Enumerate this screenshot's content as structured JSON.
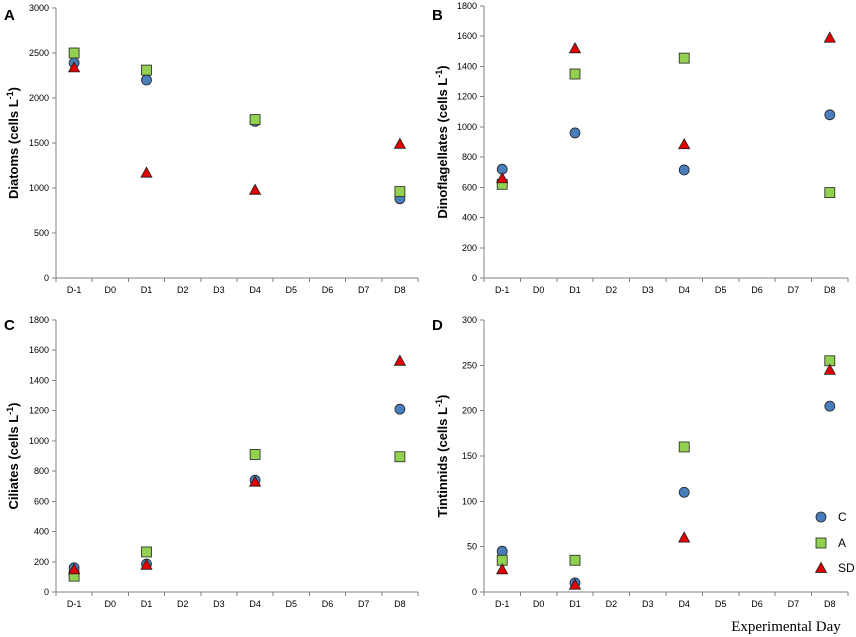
{
  "colors": {
    "C": "#4a7ebb",
    "A": "#92d050",
    "SD": "#e00000",
    "stroke": "#222222",
    "axis": "#808080"
  },
  "figure": {
    "xlabel": "Experimental Day"
  },
  "legend": {
    "entries": [
      {
        "key": "C",
        "label": "C"
      },
      {
        "key": "A",
        "label": "A"
      },
      {
        "key": "SD",
        "label": "SD"
      }
    ]
  },
  "chart_data": [
    {
      "type": "scatter",
      "panel": "A",
      "title": "",
      "ylabel_main": "Diatoms (cells L",
      "ylabel_sup": "-1",
      "ylabel_end": ")",
      "xlabel": "",
      "categories": [
        "D-1",
        "D0",
        "D1",
        "D2",
        "D3",
        "D4",
        "D5",
        "D6",
        "D7",
        "D8"
      ],
      "ylim": [
        0,
        3000
      ],
      "yticks": [
        0,
        500,
        1000,
        1500,
        2000,
        2500,
        3000
      ],
      "series": [
        {
          "name": "C",
          "marker": "circle",
          "points": [
            {
              "x": "D-1",
              "y": 2390
            },
            {
              "x": "D1",
              "y": 2200
            },
            {
              "x": "D4",
              "y": 1740
            },
            {
              "x": "D8",
              "y": 880
            }
          ]
        },
        {
          "name": "A",
          "marker": "square",
          "points": [
            {
              "x": "D-1",
              "y": 2500
            },
            {
              "x": "D1",
              "y": 2310
            },
            {
              "x": "D4",
              "y": 1760
            },
            {
              "x": "D8",
              "y": 960
            }
          ]
        },
        {
          "name": "SD",
          "marker": "triangle",
          "points": [
            {
              "x": "D-1",
              "y": 2340
            },
            {
              "x": "D1",
              "y": 1170
            },
            {
              "x": "D4",
              "y": 980
            },
            {
              "x": "D8",
              "y": 1490
            }
          ]
        }
      ]
    },
    {
      "type": "scatter",
      "panel": "B",
      "title": "",
      "ylabel_main": "Dinoflagellates (cells L",
      "ylabel_sup": "-1",
      "ylabel_end": ")",
      "xlabel": "",
      "categories": [
        "D-1",
        "D0",
        "D1",
        "D2",
        "D3",
        "D4",
        "D5",
        "D6",
        "D7",
        "D8"
      ],
      "ylim": [
        0,
        1800
      ],
      "yticks": [
        0,
        200,
        400,
        600,
        800,
        1000,
        1200,
        1400,
        1600,
        1800
      ],
      "series": [
        {
          "name": "C",
          "marker": "circle",
          "points": [
            {
              "x": "D-1",
              "y": 720
            },
            {
              "x": "D1",
              "y": 960
            },
            {
              "x": "D4",
              "y": 715
            },
            {
              "x": "D8",
              "y": 1080
            }
          ]
        },
        {
          "name": "A",
          "marker": "square",
          "points": [
            {
              "x": "D-1",
              "y": 620
            },
            {
              "x": "D1",
              "y": 1350
            },
            {
              "x": "D4",
              "y": 1455
            },
            {
              "x": "D8",
              "y": 565
            }
          ]
        },
        {
          "name": "SD",
          "marker": "triangle",
          "points": [
            {
              "x": "D-1",
              "y": 660
            },
            {
              "x": "D1",
              "y": 1520
            },
            {
              "x": "D4",
              "y": 885
            },
            {
              "x": "D8",
              "y": 1590
            }
          ]
        }
      ]
    },
    {
      "type": "scatter",
      "panel": "C",
      "title": "",
      "ylabel_main": "Ciliates (cells L",
      "ylabel_sup": "-1",
      "ylabel_end": ")",
      "xlabel": "",
      "categories": [
        "D-1",
        "D0",
        "D1",
        "D2",
        "D3",
        "D4",
        "D5",
        "D6",
        "D7",
        "D8"
      ],
      "ylim": [
        0,
        1800
      ],
      "yticks": [
        0,
        200,
        400,
        600,
        800,
        1000,
        1200,
        1400,
        1600,
        1800
      ],
      "series": [
        {
          "name": "C",
          "marker": "circle",
          "points": [
            {
              "x": "D-1",
              "y": 160
            },
            {
              "x": "D1",
              "y": 185
            },
            {
              "x": "D4",
              "y": 740
            },
            {
              "x": "D8",
              "y": 1210
            }
          ]
        },
        {
          "name": "A",
          "marker": "square",
          "points": [
            {
              "x": "D-1",
              "y": 105
            },
            {
              "x": "D1",
              "y": 265
            },
            {
              "x": "D4",
              "y": 910
            },
            {
              "x": "D8",
              "y": 895
            }
          ]
        },
        {
          "name": "SD",
          "marker": "triangle",
          "points": [
            {
              "x": "D-1",
              "y": 150
            },
            {
              "x": "D1",
              "y": 180
            },
            {
              "x": "D4",
              "y": 730
            },
            {
              "x": "D8",
              "y": 1530
            }
          ]
        }
      ]
    },
    {
      "type": "scatter",
      "panel": "D",
      "title": "",
      "ylabel_main": "Tintinnids (cells L",
      "ylabel_sup": "-1",
      "ylabel_end": ")",
      "xlabel": "",
      "categories": [
        "D-1",
        "D0",
        "D1",
        "D2",
        "D3",
        "D4",
        "D5",
        "D6",
        "D7",
        "D8"
      ],
      "ylim": [
        0,
        300
      ],
      "yticks": [
        0,
        50,
        100,
        150,
        200,
        250,
        300
      ],
      "series": [
        {
          "name": "C",
          "marker": "circle",
          "points": [
            {
              "x": "D-1",
              "y": 45
            },
            {
              "x": "D1",
              "y": 10
            },
            {
              "x": "D4",
              "y": 110
            },
            {
              "x": "D8",
              "y": 205
            }
          ]
        },
        {
          "name": "A",
          "marker": "square",
          "points": [
            {
              "x": "D-1",
              "y": 35
            },
            {
              "x": "D1",
              "y": 35
            },
            {
              "x": "D4",
              "y": 160
            },
            {
              "x": "D8",
              "y": 255
            }
          ]
        },
        {
          "name": "SD",
          "marker": "triangle",
          "points": [
            {
              "x": "D-1",
              "y": 25
            },
            {
              "x": "D1",
              "y": 8
            },
            {
              "x": "D4",
              "y": 60
            },
            {
              "x": "D8",
              "y": 245
            }
          ]
        }
      ]
    }
  ]
}
